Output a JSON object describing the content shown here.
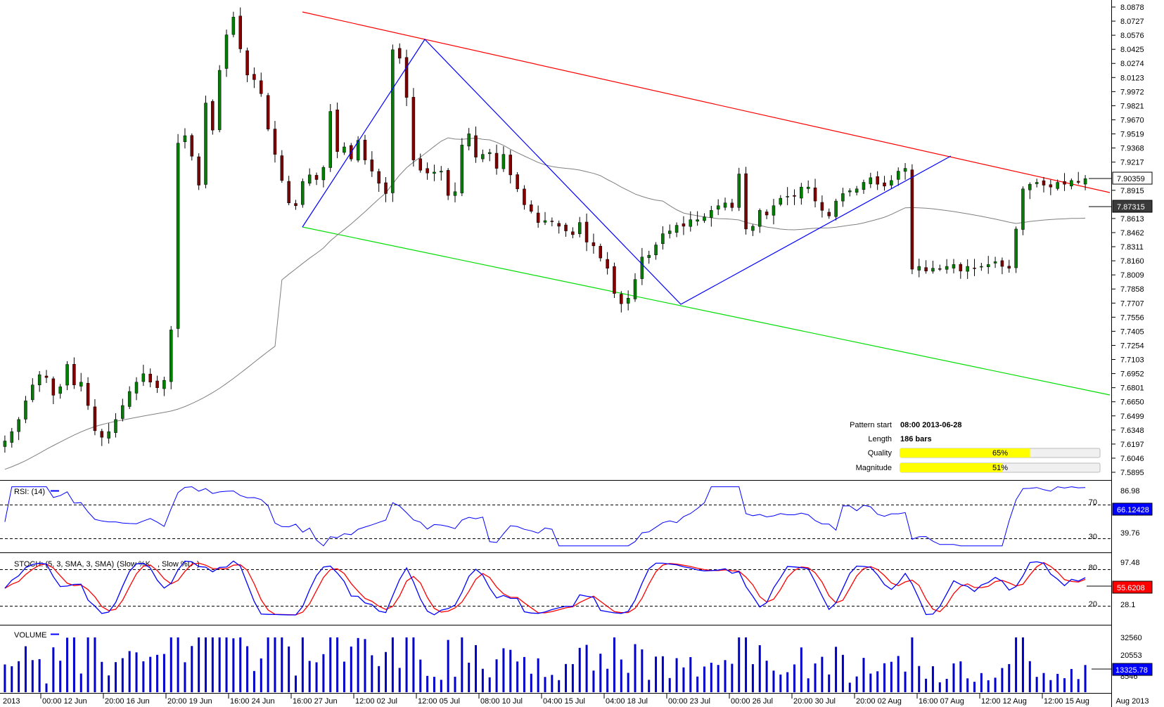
{
  "chart_data": [
    {
      "type": "candlestick",
      "panel": "price",
      "yticks": [
        "8.0878",
        "8.0727",
        "8.0576",
        "8.0425",
        "8.0274",
        "8.0123",
        "7.9972",
        "7.9821",
        "7.9670",
        "7.9519",
        "7.9368",
        "7.9217",
        "7.8915",
        "7.8613",
        "7.8462",
        "7.8311",
        "7.8160",
        "7.8009",
        "7.7858",
        "7.7707",
        "7.7556",
        "7.7405",
        "7.7254",
        "7.7103",
        "7.6952",
        "7.6801",
        "7.6650",
        "7.6499",
        "7.6348",
        "7.6197",
        "7.6046",
        "7.5895"
      ],
      "ylim": [
        7.5895,
        8.0878
      ],
      "last_price_label": "7.90359",
      "ma_label": "7.87315",
      "x_ticks": [
        "2013",
        "00:00 12 Jun",
        "20:00 16 Jun",
        "20:00 19 Jun",
        "16:00 24 Jun",
        "16:00 27 Jun",
        "12:00 02 Jul",
        "12:00 05 Jul",
        "08:00 10 Jul",
        "04:00 15 Jul",
        "04:00 18 Jul",
        "00:00 23 Jul",
        "00:00 26 Jul",
        "20:00 30 Jul",
        "20:00 02 Aug",
        "16:00 07 Aug",
        "12:00 12 Aug",
        "12:00 15 Aug",
        "Aug 2013"
      ],
      "close": [
        7.623,
        7.633,
        7.646,
        7.666,
        7.683,
        7.694,
        7.691,
        7.672,
        7.681,
        7.705,
        7.683,
        7.686,
        7.661,
        7.634,
        7.627,
        7.633,
        7.646,
        7.661,
        7.676,
        7.686,
        7.695,
        7.686,
        7.68,
        7.688,
        7.742,
        7.942,
        7.95,
        7.928,
        7.897,
        7.985,
        7.956,
        8.02,
        8.058,
        8.077,
        8.043,
        8.015,
        8.01,
        7.995,
        7.957,
        7.93,
        7.902,
        7.878,
        7.875,
        7.901,
        7.908,
        7.903,
        7.916,
        7.976,
        7.933,
        7.938,
        7.925,
        7.945,
        7.924,
        7.912,
        7.899,
        7.888,
        8.042,
        8.033,
        7.991,
        7.924,
        7.913,
        7.91,
        7.911,
        7.912,
        7.886,
        7.89,
        7.94,
        7.952,
        7.927,
        7.93,
        7.932,
        7.915,
        7.93,
        7.908,
        7.893,
        7.876,
        7.869,
        7.857,
        7.859,
        7.858,
        7.853,
        7.848,
        7.844,
        7.857,
        7.836,
        7.832,
        7.819,
        7.808,
        7.781,
        7.77,
        7.776,
        7.796,
        7.82,
        7.822,
        7.833,
        7.845,
        7.848,
        7.854,
        7.853,
        7.86,
        7.86,
        7.863,
        7.87,
        7.875,
        7.878,
        7.873,
        7.909,
        7.85,
        7.853,
        7.87,
        7.865,
        7.875,
        7.883,
        7.885,
        7.885,
        7.895,
        7.895,
        7.88,
        7.87,
        7.864,
        7.88,
        7.888,
        7.891,
        7.893,
        7.9,
        7.905,
        7.898,
        7.896,
        7.902,
        7.912,
        7.915,
        7.807,
        7.81,
        7.805,
        7.808,
        7.807,
        7.81,
        7.812,
        7.805,
        7.81,
        7.808,
        7.81,
        7.812,
        7.815,
        7.81,
        7.808,
        7.85,
        7.893,
        7.898,
        7.9,
        7.897,
        7.895,
        7.9,
        7.898,
        7.902,
        7.9,
        7.904
      ]
    },
    {
      "type": "pattern",
      "panel": "price",
      "info": {
        "pattern_start_label": "Pattern start",
        "pattern_start_value": "08:00 2013-06-28",
        "length_label": "Length",
        "length_value": "186 bars",
        "quality_label": "Quality",
        "quality_value": 0.65,
        "quality_text": "65%",
        "magnitude_label": "Magnitude",
        "magnitude_value": 0.51,
        "magnitude_text": "51%"
      }
    },
    {
      "type": "line",
      "panel": "rsi",
      "title": "RSI: (14)",
      "yticks": [
        "86.98",
        "70",
        "39.76",
        "30"
      ],
      "levels": [
        70,
        30
      ],
      "last_value_label": "66.12428"
    },
    {
      "type": "line",
      "panel": "stoch",
      "title": "STOCH: (5, 3, SMA, 3, SMA)",
      "series": [
        {
          "name": "Slow %K",
          "color": "#0000ff"
        },
        {
          "name": "Slow %D",
          "color": "#ff0000"
        }
      ],
      "yticks": [
        "97.48",
        "80",
        "28.1",
        "20"
      ],
      "levels": [
        80,
        20
      ],
      "last_value_label": "55.6208"
    },
    {
      "type": "bar",
      "panel": "volume",
      "title": "VOLUME",
      "yticks": [
        "32560",
        "20553",
        "8546"
      ],
      "last_value_label": "13325.78"
    }
  ],
  "colors": {
    "bull": "#008000",
    "bear": "#800000",
    "channel_upper": "#ff0000",
    "channel_lower": "#00dd00",
    "zigzag": "#0000ff",
    "ma": "#808080",
    "rsi": "#0000ff",
    "volume": "#0000cc",
    "meter_fill": "#ffff00"
  }
}
